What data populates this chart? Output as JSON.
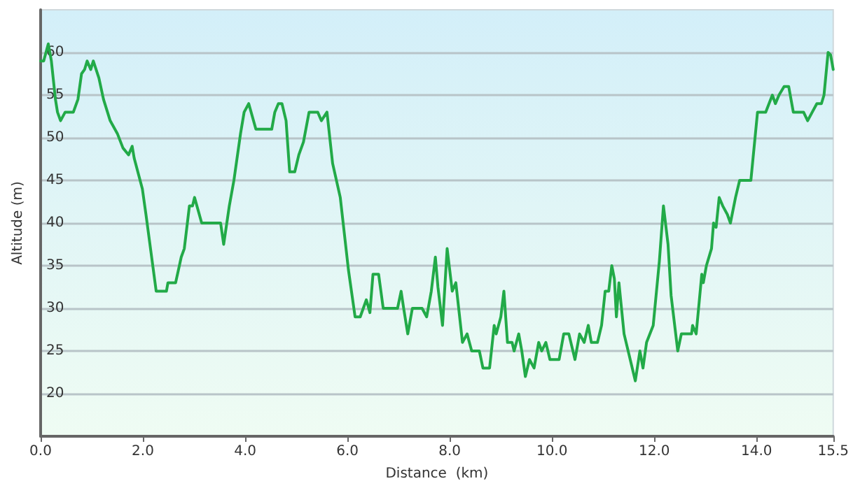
{
  "chart_data": {
    "type": "line",
    "xlabel": "Distance  (km)",
    "ylabel": "Altitude (m)",
    "xlim": [
      0,
      15.5
    ],
    "ylim": [
      15,
      65
    ],
    "xticks": [
      {
        "value": 0,
        "label": "0.0"
      },
      {
        "value": 2,
        "label": "2.0"
      },
      {
        "value": 4,
        "label": "4.0"
      },
      {
        "value": 6,
        "label": "6.0"
      },
      {
        "value": 8,
        "label": "8.0"
      },
      {
        "value": 10,
        "label": "10.0"
      },
      {
        "value": 12,
        "label": "12.0"
      },
      {
        "value": 14,
        "label": "14.0"
      },
      {
        "value": 15.5,
        "label": "15.5"
      }
    ],
    "yticks": [
      20,
      25,
      30,
      35,
      40,
      45,
      50,
      55,
      60
    ],
    "grid": "y",
    "marker": "none",
    "line_style": "solid",
    "series": [
      {
        "color": "#22aa48",
        "x": [
          0,
          0.06,
          0.15,
          0.21,
          0.29,
          0.33,
          0.39,
          0.48,
          0.64,
          0.73,
          0.8,
          0.86,
          0.91,
          0.98,
          1.03,
          1.14,
          1.23,
          1.36,
          1.5,
          1.61,
          1.72,
          1.79,
          1.83,
          1.99,
          2.06,
          2.26,
          2.46,
          2.49,
          2.64,
          2.75,
          2.81,
          2.91,
          2.97,
          3.01,
          3.15,
          3.52,
          3.58,
          3.69,
          3.78,
          3.91,
          3.98,
          4.07,
          4.21,
          4.52,
          4.58,
          4.65,
          4.72,
          4.8,
          4.87,
          4.97,
          5.05,
          5.14,
          5.25,
          5.42,
          5.49,
          5.6,
          5.71,
          5.86,
          6.02,
          6.15,
          6.25,
          6.37,
          6.44,
          6.5,
          6.61,
          6.7,
          6.98,
          7.05,
          7.1,
          7.18,
          7.27,
          7.46,
          7.55,
          7.64,
          7.72,
          7.77,
          7.86,
          7.95,
          8.05,
          8.12,
          8.25,
          8.34,
          8.43,
          8.58,
          8.65,
          8.78,
          8.87,
          8.91,
          9.0,
          9.06,
          9.13,
          9.22,
          9.26,
          9.35,
          9.41,
          9.48,
          9.56,
          9.65,
          9.74,
          9.8,
          9.88,
          9.96,
          10.05,
          10.14,
          10.23,
          10.33,
          10.45,
          10.54,
          10.63,
          10.71,
          10.77,
          10.89,
          10.97,
          11.04,
          11.11,
          11.17,
          11.22,
          11.26,
          11.31,
          11.41,
          11.53,
          11.63,
          11.72,
          11.78,
          11.85,
          11.98,
          12.1,
          12.18,
          12.27,
          12.33,
          12.46,
          12.53,
          12.73,
          12.75,
          12.82,
          12.93,
          12.96,
          13.02,
          13.12,
          13.16,
          13.21,
          13.27,
          13.34,
          13.43,
          13.49,
          13.59,
          13.67,
          13.89,
          14.02,
          14.18,
          14.31,
          14.37,
          14.44,
          14.54,
          14.63,
          14.72,
          14.92,
          15.0,
          15.09,
          15.18,
          15.27,
          15.32,
          15.4,
          15.45,
          15.5
        ],
        "values": [
          59,
          59,
          61,
          59,
          54.5,
          53,
          52,
          53,
          53,
          54.5,
          57.5,
          58,
          59,
          58,
          59,
          57,
          54.5,
          52,
          50.5,
          48.8,
          48,
          49,
          47.6,
          44,
          41,
          32,
          32,
          33,
          33,
          36,
          37,
          42,
          42,
          43,
          40,
          40,
          37.5,
          42,
          45,
          50.5,
          53,
          54,
          51,
          51,
          53,
          54,
          54,
          52,
          46,
          46,
          48,
          49.5,
          53,
          53,
          52,
          53,
          47,
          43,
          34.5,
          29,
          29,
          31,
          29.5,
          34,
          34,
          30,
          30,
          32,
          30,
          27,
          30,
          30,
          29,
          32,
          36,
          32.5,
          28,
          37,
          32,
          33,
          26,
          27,
          25,
          25,
          23,
          23,
          28,
          27,
          29,
          32,
          26,
          26,
          25,
          27,
          25,
          22,
          24,
          23,
          26,
          25,
          26,
          24,
          24,
          24,
          27,
          27,
          24,
          27,
          26,
          28,
          26,
          26,
          28,
          32,
          32,
          35,
          33.5,
          29,
          33,
          27,
          24,
          21.5,
          25,
          23,
          26,
          28,
          35.5,
          42,
          37.5,
          31.5,
          25,
          27,
          27,
          28,
          27,
          34,
          33,
          35,
          37,
          40,
          39.5,
          43,
          42,
          41,
          40,
          43,
          45,
          45,
          53,
          53,
          55,
          54,
          55,
          56,
          56,
          53,
          53,
          52,
          53,
          54,
          54,
          55,
          60,
          59.7,
          58
        ]
      }
    ]
  }
}
